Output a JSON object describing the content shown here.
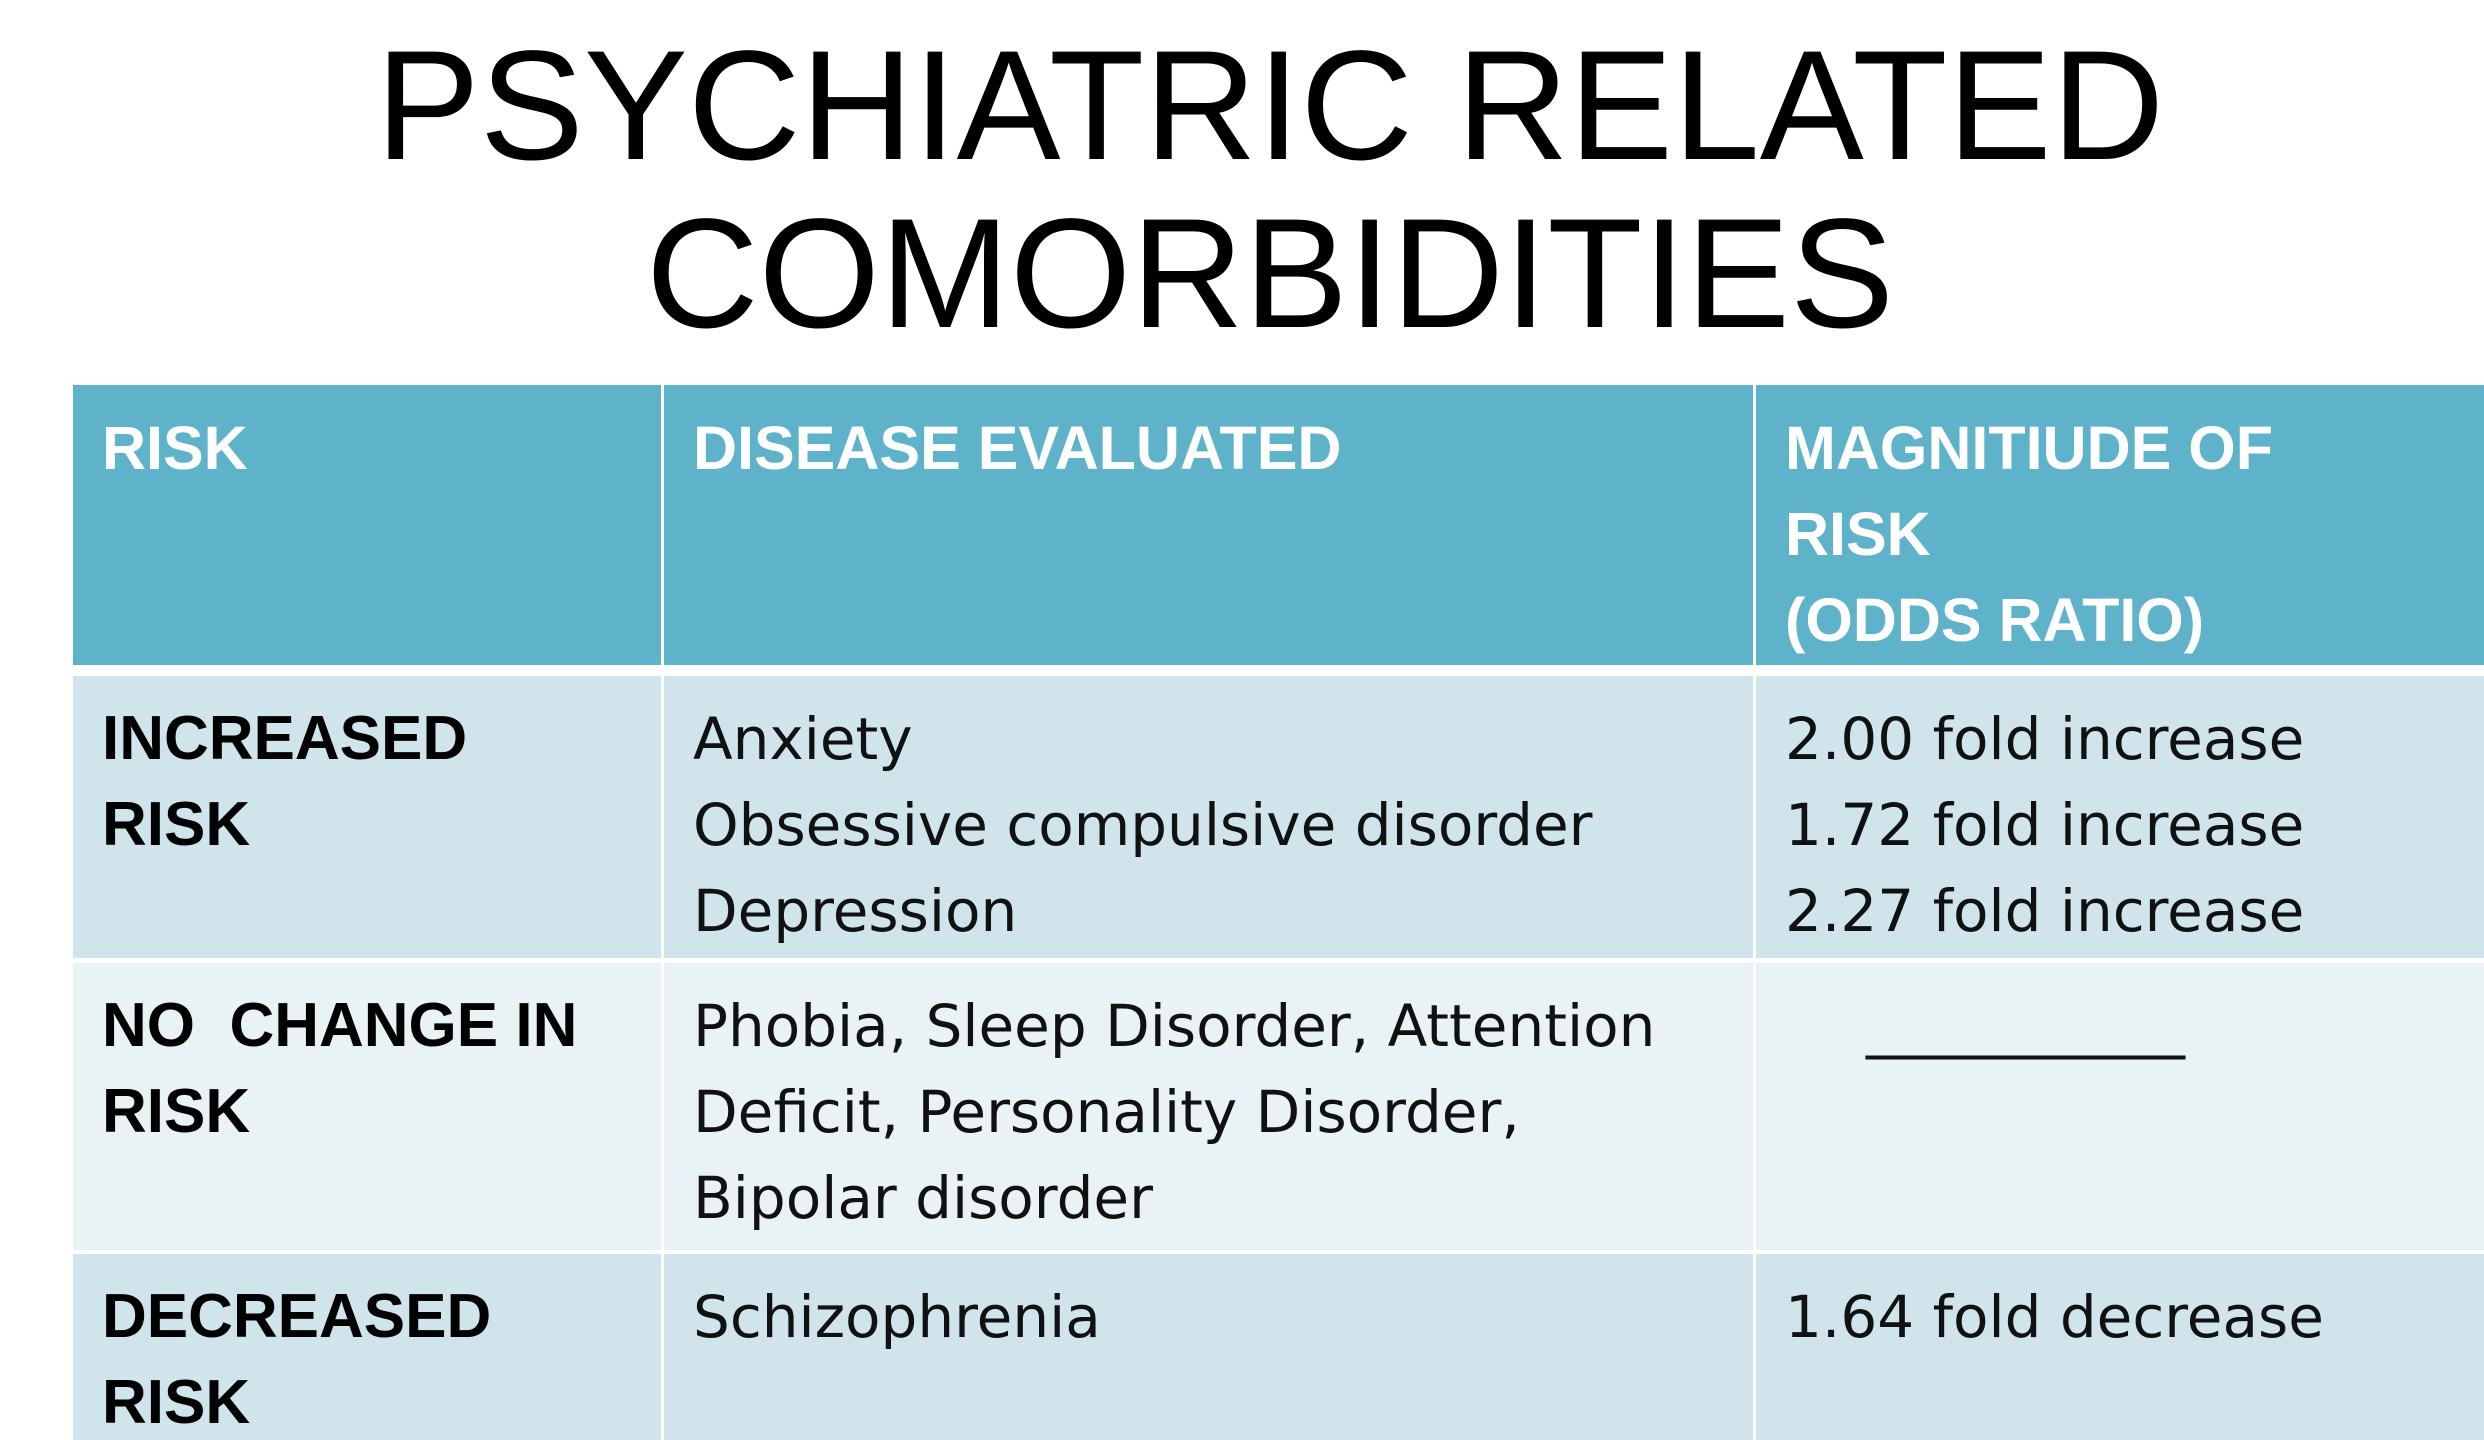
{
  "title": [
    "PSYCHIATRIC RELATED",
    "COMORBIDITIES"
  ],
  "table": {
    "header": [
      [
        "RISK"
      ],
      [
        "DISEASE EVALUATED"
      ],
      [
        "MAGNITIUDE OF",
        "RISK",
        "(ODDS RATIO)"
      ]
    ],
    "rows": [
      [
        [
          "INCREASED",
          "RISK"
        ],
        [
          "Anxiety",
          "Obsessive compulsive disorder",
          "Depression"
        ],
        [
          "2.00 fold increase",
          "1.72 fold increase",
          "2.27 fold increase"
        ]
      ],
      [
        [
          "NO  CHANGE IN",
          "RISK"
        ],
        [
          "Phobia, Sleep Disorder, Attention",
          "Deficit, Personality Disorder,",
          "Bipolar disorder"
        ],
        [
          "___________"
        ]
      ],
      [
        [
          "DECREASED",
          "RISK"
        ],
        [
          "Schizophrenia"
        ],
        [
          "1.64 fold decrease"
        ]
      ]
    ]
  }
}
